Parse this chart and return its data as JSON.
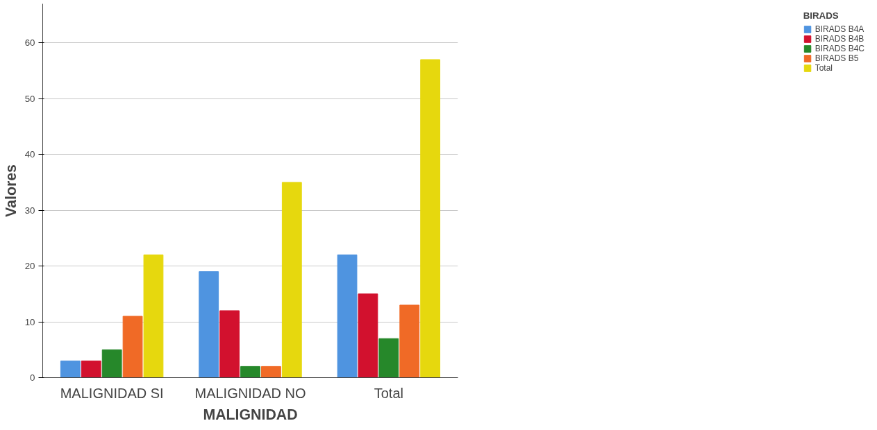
{
  "chart_data": {
    "type": "bar",
    "xlabel": "MALIGNIDAD",
    "ylabel": "Valores",
    "legend_title": "BIRADS",
    "categories": [
      "MALIGNIDAD SI",
      "MALIGNIDAD NO",
      "Total"
    ],
    "series": [
      {
        "name": "BIRADS B4A",
        "color": "#4f94e0",
        "values": [
          3,
          19,
          22
        ]
      },
      {
        "name": "BIRADS B4B",
        "color": "#d2112e",
        "values": [
          3,
          12,
          15
        ]
      },
      {
        "name": "BIRADS B4C",
        "color": "#26882a",
        "values": [
          5,
          2,
          7
        ]
      },
      {
        "name": "BIRADS B5",
        "color": "#f06a26",
        "values": [
          11,
          2,
          13
        ]
      },
      {
        "name": "Total",
        "color": "#e6d80e",
        "values": [
          22,
          35,
          57
        ]
      }
    ],
    "ylim": [
      0,
      67
    ],
    "yticks": [
      0,
      10,
      20,
      30,
      40,
      50,
      60
    ],
    "grid": "y",
    "legend": "top right"
  }
}
